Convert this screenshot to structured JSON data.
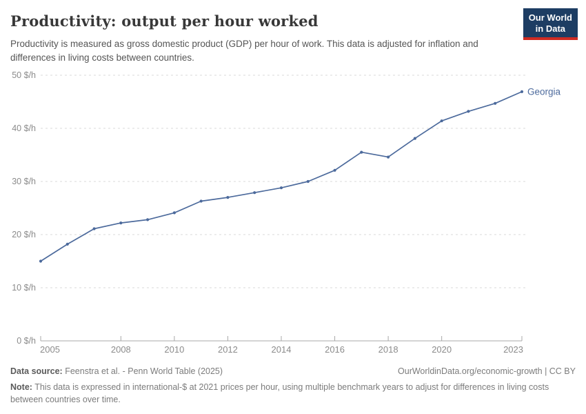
{
  "header": {
    "title": "Productivity: output per hour worked",
    "subtitle": "Productivity is measured as gross domestic product (GDP) per hour of work. This data is adjusted for inflation and differences in living costs between countries.",
    "logo": {
      "line1": "Our World",
      "line2": "in Data"
    }
  },
  "chart_data": {
    "type": "line",
    "title": "Productivity: output per hour worked",
    "x": [
      2005,
      2006,
      2007,
      2008,
      2009,
      2010,
      2011,
      2012,
      2013,
      2014,
      2015,
      2016,
      2017,
      2018,
      2019,
      2020,
      2021,
      2022,
      2023
    ],
    "series": [
      {
        "name": "Georgia",
        "values": [
          15.0,
          18.2,
          21.1,
          22.2,
          22.8,
          24.1,
          26.3,
          27.0,
          27.9,
          28.8,
          30.0,
          32.1,
          35.5,
          34.6,
          38.1,
          41.4,
          43.2,
          44.7,
          46.9
        ]
      }
    ],
    "xticks": [
      2005,
      2008,
      2010,
      2012,
      2014,
      2016,
      2018,
      2020,
      2023
    ],
    "yticks": [
      0,
      10,
      20,
      30,
      40,
      50
    ],
    "y_tick_suffix": " $/h",
    "xlim": [
      2005,
      2023
    ],
    "ylim": [
      0,
      50
    ],
    "grid": "horizontal-dashed",
    "legend_position": "end-of-line-label"
  },
  "colors": {
    "line": "#4c6a9c",
    "series_label": "#4c6a9c",
    "logo_bg": "#1d3d63",
    "logo_stripe": "#cf2b22",
    "grid": "#d9d9d9",
    "axis": "#a8a8a8",
    "tick_text": "#8b8b8b"
  },
  "footer": {
    "source_label": "Data source:",
    "source_text": "Feenstra et al. - Penn World Table (2025)",
    "credit": "OurWorldinData.org/economic-growth | CC BY",
    "note_label": "Note:",
    "note_text": "This data is expressed in international-$ at 2021 prices per hour, using multiple benchmark years to adjust for differences in living costs between countries over time."
  }
}
